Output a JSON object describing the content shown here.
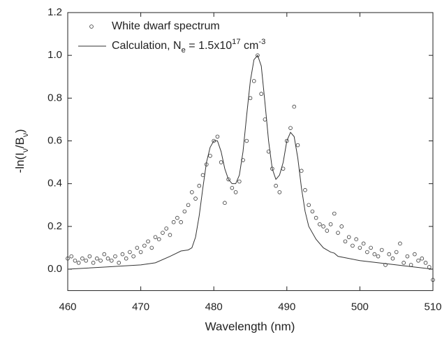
{
  "chart_data": {
    "type": "scatter-line",
    "xlabel": "Wavelength (nm)",
    "ylabel": [
      {
        "text": "-ln(I"
      },
      {
        "text": "ν",
        "shift": "sub"
      },
      {
        "text": "/B"
      },
      {
        "text": "ν",
        "shift": "sub"
      },
      {
        "text": ")"
      }
    ],
    "xlim": [
      460,
      510
    ],
    "xticks": [
      460,
      470,
      480,
      490,
      500,
      510
    ],
    "ylim": [
      -0.1,
      1.2
    ],
    "yticks": [
      {
        "value": 0,
        "label": "0.0"
      },
      0.2,
      0.4,
      0.6,
      0.8,
      {
        "value": 1,
        "label": "1.0"
      },
      1.2
    ],
    "series": [
      {
        "name": [
          {
            "text": "White dwarf spectrum"
          }
        ],
        "type": "scatter",
        "color": "#333333",
        "x": [
          460,
          460.5,
          461,
          461.5,
          462,
          462.5,
          463,
          463.5,
          464,
          464.5,
          465,
          465.5,
          466,
          466.5,
          467,
          467.5,
          468,
          468.5,
          469,
          469.5,
          470,
          470.5,
          471,
          471.5,
          472,
          472.5,
          473,
          473.5,
          474,
          474.5,
          475,
          475.5,
          476,
          476.5,
          477,
          477.5,
          478,
          478.5,
          479,
          479.5,
          480,
          480.5,
          481,
          481.5,
          482,
          482.5,
          483,
          483.5,
          484,
          484.5,
          485,
          485.5,
          486,
          486.5,
          487,
          487.5,
          488,
          488.5,
          489,
          489.5,
          490,
          490.5,
          491,
          491.5,
          492,
          492.5,
          493,
          493.5,
          494,
          494.5,
          495,
          495.5,
          496,
          496.5,
          497,
          497.5,
          498,
          498.5,
          499,
          499.5,
          500,
          500.5,
          501,
          501.5,
          502,
          502.5,
          503,
          503.5,
          504,
          504.5,
          505,
          505.5,
          506,
          506.5,
          507,
          507.5,
          508,
          508.5,
          509,
          509.5,
          510
        ],
        "values": [
          0.05,
          0.06,
          0.04,
          0.03,
          0.05,
          0.04,
          0.06,
          0.03,
          0.05,
          0.04,
          0.07,
          0.05,
          0.04,
          0.06,
          0.03,
          0.07,
          0.05,
          0.08,
          0.06,
          0.1,
          0.08,
          0.11,
          0.13,
          0.1,
          0.15,
          0.14,
          0.17,
          0.19,
          0.16,
          0.22,
          0.24,
          0.22,
          0.27,
          0.3,
          0.36,
          0.33,
          0.39,
          0.44,
          0.49,
          0.53,
          0.6,
          0.62,
          0.5,
          0.31,
          0.42,
          0.38,
          0.36,
          0.41,
          0.51,
          0.6,
          0.8,
          0.88,
          1.0,
          0.82,
          0.7,
          0.55,
          0.47,
          0.39,
          0.36,
          0.47,
          0.6,
          0.66,
          0.76,
          0.58,
          0.46,
          0.37,
          0.3,
          0.27,
          0.24,
          0.21,
          0.2,
          0.18,
          0.21,
          0.26,
          0.17,
          0.2,
          0.13,
          0.15,
          0.11,
          0.14,
          0.1,
          0.12,
          0.08,
          0.1,
          0.07,
          0.06,
          0.09,
          0.02,
          0.07,
          0.05,
          0.08,
          0.12,
          0.03,
          0.06,
          0.02,
          0.07,
          0.04,
          0.05,
          0.03,
          0.01,
          -0.05
        ]
      },
      {
        "name": [
          {
            "text": "Calculation, N"
          },
          {
            "text": "e",
            "shift": "sub"
          },
          {
            "text": " = 1.5x10"
          },
          {
            "text": "17",
            "shift": "sup"
          },
          {
            "text": " cm"
          },
          {
            "text": "-3",
            "shift": "sup"
          }
        ],
        "type": "line",
        "color": "#333333",
        "x": [
          460,
          465,
          470,
          472,
          474,
          475.5,
          476.5,
          477,
          477.5,
          478,
          478.5,
          479,
          479.5,
          480,
          480.5,
          481,
          481.5,
          482,
          482.5,
          483,
          483.5,
          484,
          484.5,
          485,
          485.5,
          486,
          486.5,
          487,
          487.5,
          488,
          488.5,
          489,
          489.5,
          490,
          490.5,
          491,
          491.5,
          492,
          492.5,
          493,
          494,
          495,
          496,
          496.5,
          497,
          500,
          505,
          510
        ],
        "values": [
          0.0,
          0.01,
          0.02,
          0.03,
          0.06,
          0.085,
          0.09,
          0.1,
          0.15,
          0.25,
          0.38,
          0.5,
          0.57,
          0.6,
          0.6,
          0.55,
          0.47,
          0.42,
          0.4,
          0.4,
          0.44,
          0.55,
          0.72,
          0.88,
          0.98,
          1.0,
          0.95,
          0.78,
          0.6,
          0.47,
          0.42,
          0.44,
          0.5,
          0.6,
          0.64,
          0.62,
          0.52,
          0.38,
          0.27,
          0.2,
          0.14,
          0.1,
          0.08,
          0.075,
          0.06,
          0.04,
          0.02,
          0.0
        ]
      }
    ]
  }
}
